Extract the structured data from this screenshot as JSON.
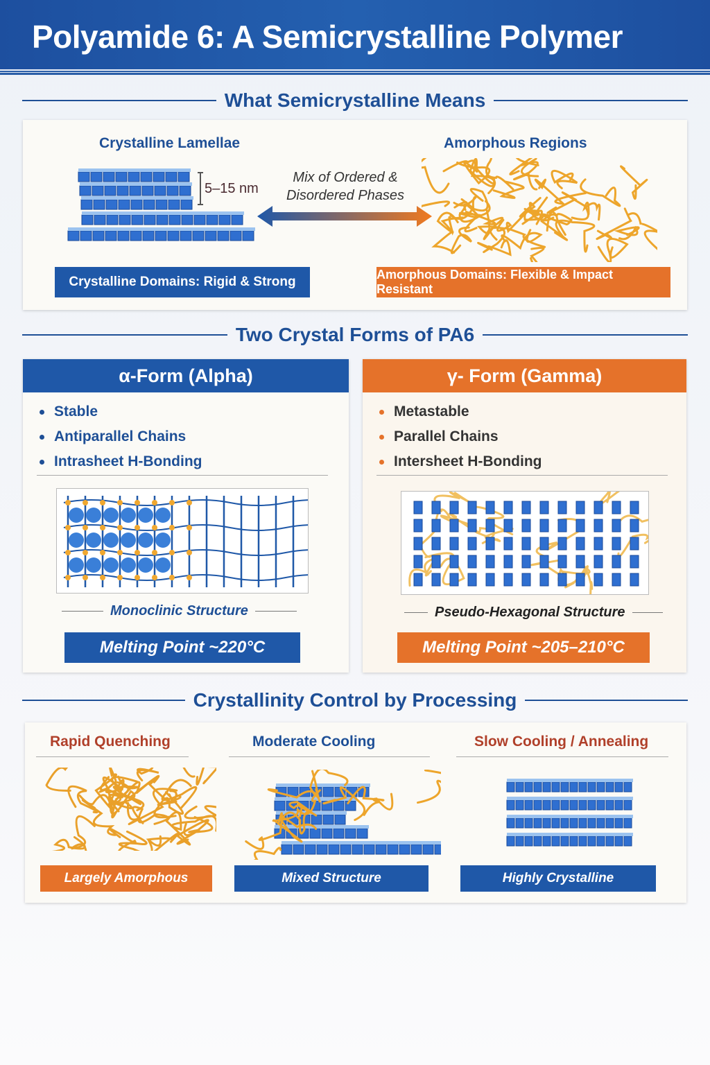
{
  "title": "Polyamide 6: A Semicrystalline Polymer",
  "section1": {
    "heading": "What Semicrystalline Means",
    "left_label": "Crystalline Lamellae",
    "right_label": "Amorphous Regions",
    "thickness": "5–15 nm",
    "center_line1": "Mix of Ordered &",
    "center_line2": "Disordered Phases",
    "left_banner": "Crystalline Domains: Rigid & Strong",
    "right_banner": "Amorphous Domains: Flexible & Impact Resistant"
  },
  "section2": {
    "heading": "Two Crystal Forms of PA6",
    "alpha": {
      "title": "α-Form (Alpha)",
      "bullets": [
        "Stable",
        "Antiparallel Chains",
        "Intrasheet H-Bonding"
      ],
      "structure": "Monoclinic Structure",
      "melting": "Melting Point ~220°C"
    },
    "gamma": {
      "title": "γ- Form (Gamma)",
      "bullets": [
        "Metastable",
        "Parallel Chains",
        "Intersheet H-Bonding"
      ],
      "structure": "Pseudo-Hexagonal Structure",
      "melting": "Melting Point ~205–210°C"
    }
  },
  "section3": {
    "heading": "Crystallinity Control by Processing",
    "items": [
      {
        "title": "Rapid Quenching",
        "result": "Largely Amorphous"
      },
      {
        "title": "Moderate Cooling",
        "result": "Mixed Structure"
      },
      {
        "title": "Slow Cooling / Annealing",
        "result": "Highly Crystalline"
      }
    ]
  },
  "colors": {
    "blue": "#1f58a8",
    "orange": "#e5722a",
    "gold": "#f0a830",
    "navy": "#1e4f96"
  }
}
